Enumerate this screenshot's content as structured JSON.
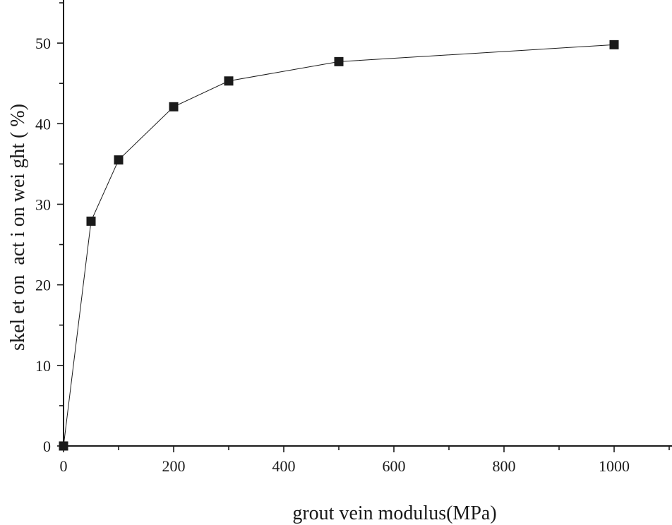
{
  "chart_data": {
    "type": "line",
    "title": "",
    "xlabel": "grout vein modulus(MPa)",
    "ylabel": "skel et on  act i on wei ght ( %)",
    "xlim": [
      0,
      1100
    ],
    "ylim": [
      0,
      55
    ],
    "x_ticks": [
      0,
      200,
      400,
      600,
      800,
      1000
    ],
    "y_ticks": [
      0,
      10,
      20,
      30,
      40,
      50
    ],
    "x_minor_step": 100,
    "y_minor_step": 5,
    "grid": false,
    "legend": "none",
    "marker": "square",
    "series": [
      {
        "x": [
          0,
          50,
          100,
          200,
          300,
          500,
          1000
        ],
        "y": [
          0,
          27.9,
          35.5,
          42.1,
          45.3,
          47.7,
          49.8
        ],
        "color": "#1a1a1a"
      }
    ]
  }
}
